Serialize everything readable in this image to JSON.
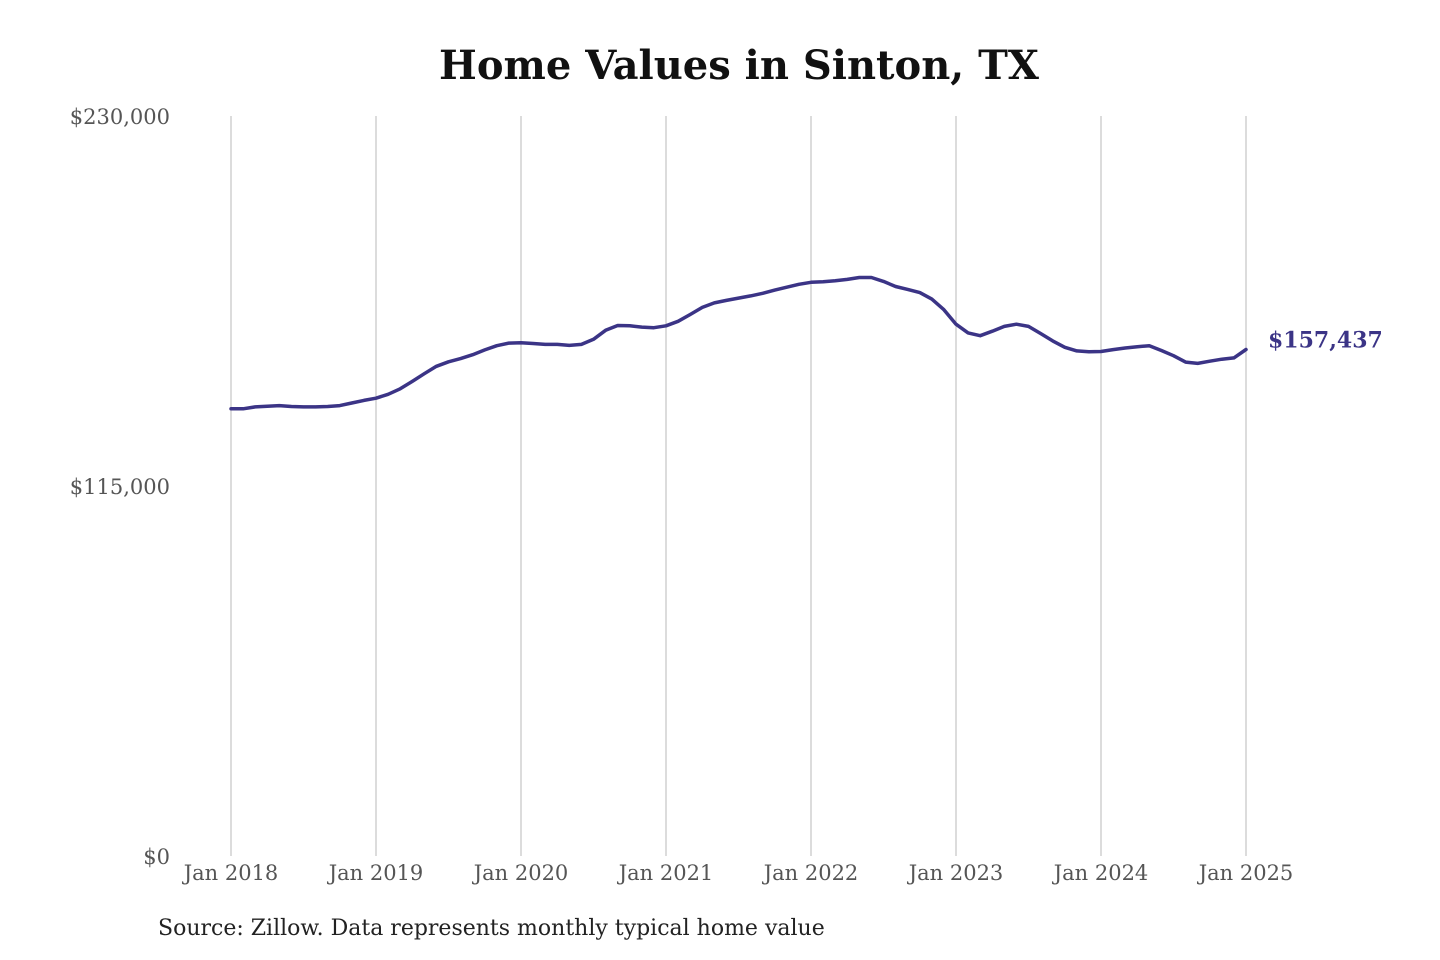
{
  "chart_data": {
    "type": "line",
    "title": "Home Values in Sinton, TX",
    "xlabel": "",
    "ylabel": "",
    "ylim": [
      0,
      230000
    ],
    "y_ticks": [
      0,
      115000,
      230000
    ],
    "y_tick_labels": [
      "$0",
      "$115,000",
      "$230,000"
    ],
    "x_ticks": [
      "2018-01",
      "2019-01",
      "2020-01",
      "2021-01",
      "2022-01",
      "2023-01",
      "2024-01",
      "2025-01"
    ],
    "x_tick_labels": [
      "Jan 2018",
      "Jan 2019",
      "Jan 2020",
      "Jan 2021",
      "Jan 2022",
      "Jan 2023",
      "Jan 2024",
      "Jan 2025"
    ],
    "grid": "vertical",
    "color": "#3b3486",
    "end_label": "$157,437",
    "series": [
      {
        "x": [
          "2018-01",
          "2018-02",
          "2018-03",
          "2018-04",
          "2018-05",
          "2018-06",
          "2018-07",
          "2018-08",
          "2018-09",
          "2018-10",
          "2018-11",
          "2018-12",
          "2019-01",
          "2019-02",
          "2019-03",
          "2019-04",
          "2019-05",
          "2019-06",
          "2019-07",
          "2019-08",
          "2019-09",
          "2019-10",
          "2019-11",
          "2019-12",
          "2020-01",
          "2020-02",
          "2020-03",
          "2020-04",
          "2020-05",
          "2020-06",
          "2020-07",
          "2020-08",
          "2020-09",
          "2020-10",
          "2020-11",
          "2020-12",
          "2021-01",
          "2021-02",
          "2021-03",
          "2021-04",
          "2021-05",
          "2021-06",
          "2021-07",
          "2021-08",
          "2021-09",
          "2021-10",
          "2021-11",
          "2021-12",
          "2022-01",
          "2022-02",
          "2022-03",
          "2022-04",
          "2022-05",
          "2022-06",
          "2022-07",
          "2022-08",
          "2022-09",
          "2022-10",
          "2022-11",
          "2022-12",
          "2023-01",
          "2023-02",
          "2023-03",
          "2023-04",
          "2023-05",
          "2023-06",
          "2023-07",
          "2023-08",
          "2023-09",
          "2023-10",
          "2023-11",
          "2023-12",
          "2024-01",
          "2024-02",
          "2024-03",
          "2024-04",
          "2024-05",
          "2024-06",
          "2024-07",
          "2024-08",
          "2024-09",
          "2024-10",
          "2024-11",
          "2024-12",
          "2025-01"
        ],
        "y": [
          139000,
          139000,
          139600,
          139800,
          140000,
          139700,
          139600,
          139600,
          139700,
          140000,
          140800,
          141600,
          142300,
          143500,
          145200,
          147500,
          149900,
          152200,
          153600,
          154600,
          155800,
          157300,
          158600,
          159400,
          159500,
          159300,
          159000,
          159000,
          158700,
          159000,
          160600,
          163400,
          164900,
          164800,
          164400,
          164200,
          164800,
          166200,
          168300,
          170500,
          171900,
          172700,
          173400,
          174100,
          174900,
          175900,
          176800,
          177700,
          178300,
          178500,
          178800,
          179200,
          179800,
          179800,
          178600,
          177000,
          176100,
          175100,
          173100,
          169800,
          165300,
          162600,
          161700,
          163100,
          164600,
          165300,
          164600,
          162400,
          160100,
          158100,
          157000,
          156700,
          156800,
          157400,
          157900,
          158300,
          158600,
          157100,
          155500,
          153500,
          153100,
          153800,
          154400,
          154800,
          157437
        ]
      }
    ]
  },
  "source_note": "Source: Zillow. Data represents monthly typical home value"
}
